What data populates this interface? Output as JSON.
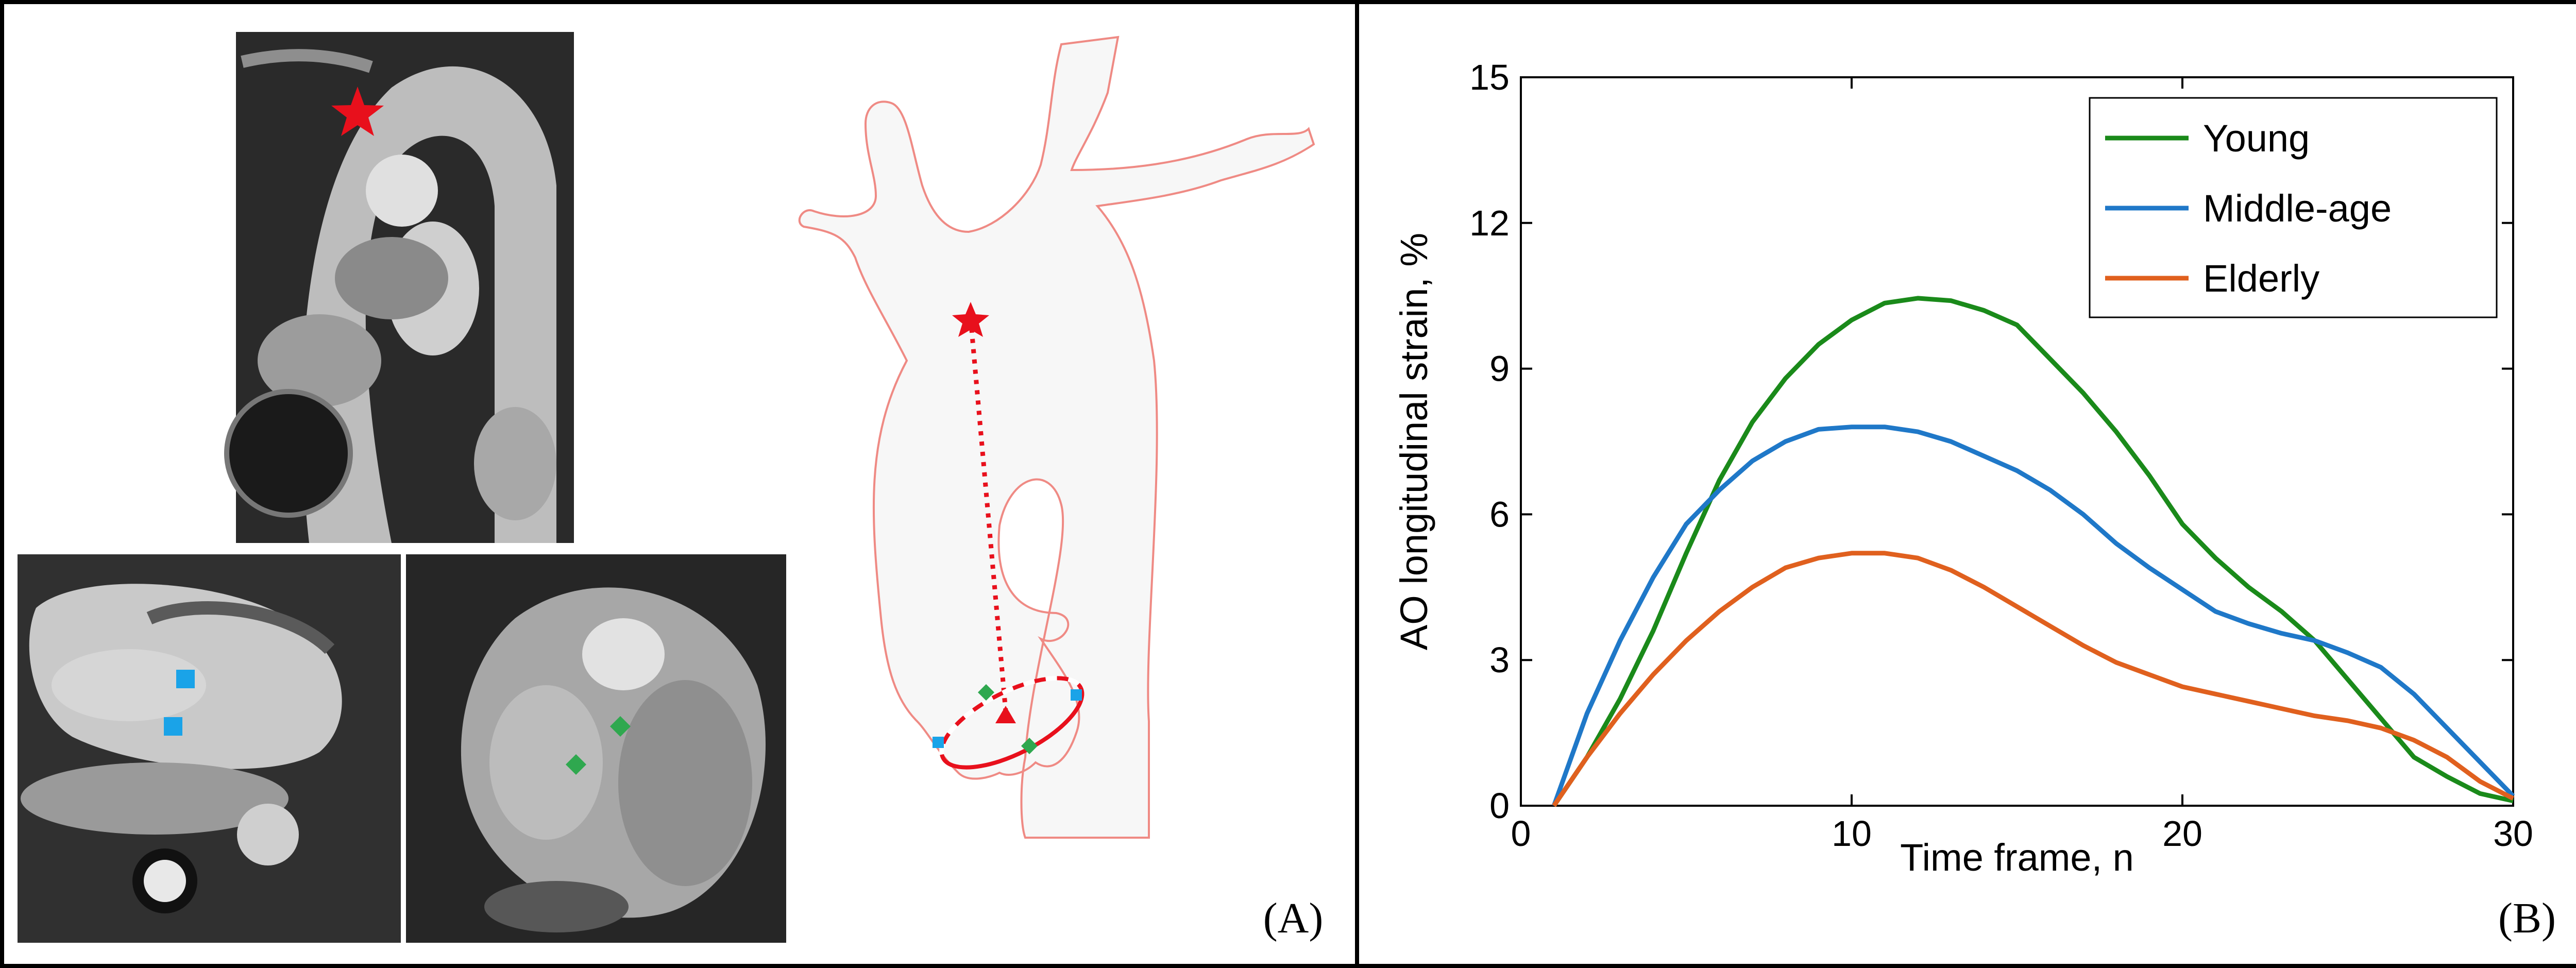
{
  "panel_a": {
    "label": "(A)"
  },
  "panel_b": {
    "label": "(B)"
  },
  "colors": {
    "young": "#1a8a1a",
    "middle": "#1f78c8",
    "elderly": "#e0601e",
    "annot_red": "#e8101c",
    "annot_green": "#2fa84f",
    "annot_blue": "#1aa3e8",
    "aorta_outline": "#ef8a84"
  },
  "chart_data": {
    "type": "line",
    "title": "",
    "xlabel": "Time frame, n",
    "ylabel": "AO longitudinal strain, %",
    "xlim": [
      0,
      30
    ],
    "ylim": [
      0,
      15
    ],
    "xticks": [
      0,
      10,
      20,
      30
    ],
    "yticks": [
      0,
      3,
      6,
      9,
      12,
      15
    ],
    "grid": false,
    "legend_position": "top-right",
    "series": [
      {
        "name": "Young",
        "color_key": "young",
        "x": [
          1,
          2,
          3,
          4,
          5,
          6,
          7,
          8,
          9,
          10,
          11,
          12,
          13,
          14,
          15,
          16,
          17,
          18,
          19,
          20,
          21,
          22,
          23,
          24,
          25,
          26,
          27,
          28,
          29,
          30
        ],
        "values": [
          0,
          1.0,
          2.2,
          3.6,
          5.2,
          6.7,
          7.9,
          8.8,
          9.5,
          10.0,
          10.35,
          10.45,
          10.4,
          10.2,
          9.9,
          9.2,
          8.5,
          7.7,
          6.8,
          5.8,
          5.1,
          4.5,
          4.0,
          3.4,
          2.6,
          1.8,
          1.0,
          0.6,
          0.25,
          0.1
        ]
      },
      {
        "name": "Middle-age",
        "color_key": "middle",
        "x": [
          1,
          2,
          3,
          4,
          5,
          6,
          7,
          8,
          9,
          10,
          11,
          12,
          13,
          14,
          15,
          16,
          17,
          18,
          19,
          20,
          21,
          22,
          23,
          24,
          25,
          26,
          27,
          28,
          29,
          30
        ],
        "values": [
          0,
          1.9,
          3.4,
          4.7,
          5.8,
          6.5,
          7.1,
          7.5,
          7.75,
          7.8,
          7.8,
          7.7,
          7.5,
          7.2,
          6.9,
          6.5,
          6.0,
          5.4,
          4.9,
          4.45,
          4.0,
          3.75,
          3.55,
          3.4,
          3.15,
          2.85,
          2.3,
          1.6,
          0.9,
          0.2
        ]
      },
      {
        "name": "Elderly",
        "color_key": "elderly",
        "x": [
          1,
          2,
          3,
          4,
          5,
          6,
          7,
          8,
          9,
          10,
          11,
          12,
          13,
          14,
          15,
          16,
          17,
          18,
          19,
          20,
          21,
          22,
          23,
          24,
          25,
          26,
          27,
          28,
          29,
          30
        ],
        "values": [
          0,
          1.0,
          1.9,
          2.7,
          3.4,
          4.0,
          4.5,
          4.9,
          5.1,
          5.2,
          5.2,
          5.1,
          4.85,
          4.5,
          4.1,
          3.7,
          3.3,
          2.95,
          2.7,
          2.45,
          2.3,
          2.15,
          2.0,
          1.85,
          1.75,
          1.6,
          1.35,
          1.0,
          0.5,
          0.15
        ]
      }
    ]
  }
}
